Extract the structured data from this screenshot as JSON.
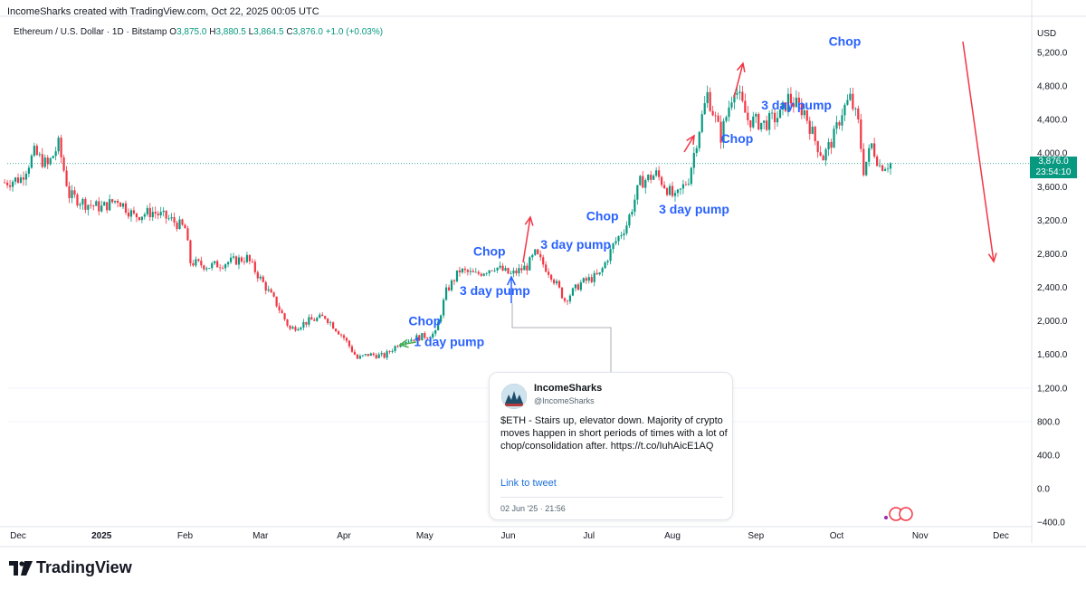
{
  "header": {
    "text": "IncomeSharks created with TradingView.com, Oct 22, 2025 00:05 UTC"
  },
  "legend": {
    "symbol": "Ethereum / U.S. Dollar · 1D · Bitstamp",
    "o_key": "O",
    "o_val": "3,875.0",
    "h_key": "H",
    "h_val": "3,880.5",
    "l_key": "L",
    "l_val": "3,864.5",
    "c_key": "C",
    "c_val": "3,876.0",
    "change": "+1.0 (+0.03%)"
  },
  "price_tag": {
    "price": "3,876.0",
    "countdown": "23:54:10"
  },
  "tweet": {
    "name": "IncomeSharks",
    "handle": "@IncomeSharks",
    "text": "$ETH - Stairs up, elevator down. Majority of crypto moves happen in short periods of times with a lot of chop/consolidation after. https://t.co/IuhAicE1AQ",
    "link": "Link to tweet",
    "date": "02 Jun '25 · 21:56"
  },
  "brand": {
    "name": "TradingView"
  },
  "colors": {
    "up": "#089981",
    "down": "#f23645",
    "annotation": "#2962ff",
    "arrow": "#f23645",
    "green_arrow": "#4caf50",
    "blue_arrow": "#2962ff"
  },
  "chart_data": {
    "type": "candlestick",
    "title": "Ethereum / U.S. Dollar · 1D · Bitstamp",
    "currency_label": "USD",
    "y_ticks": [
      5200,
      4800,
      4400,
      4000,
      3600,
      3200,
      2800,
      2400,
      2000,
      1600,
      1200,
      800,
      400,
      0,
      -400
    ],
    "y_tick_labels": [
      "5,200.0",
      "4,800.0",
      "4,400.0",
      "4,000.0",
      "3,600.0",
      "3,200.0",
      "2,800.0",
      "2,400.0",
      "2,000.0",
      "1,600.0",
      "1,200.0",
      "800.0",
      "400.0",
      "0.0",
      "−400.0"
    ],
    "ylim": [
      -400,
      5600
    ],
    "x_ticks": [
      {
        "label": "Dec",
        "date": "2024-12-01"
      },
      {
        "label": "2025",
        "date": "2025-01-01"
      },
      {
        "label": "Feb",
        "date": "2025-02-01"
      },
      {
        "label": "Mar",
        "date": "2025-03-01"
      },
      {
        "label": "Apr",
        "date": "2025-04-01"
      },
      {
        "label": "May",
        "date": "2025-05-01"
      },
      {
        "label": "Jun",
        "date": "2025-06-01"
      },
      {
        "label": "Jul",
        "date": "2025-07-01"
      },
      {
        "label": "Aug",
        "date": "2025-08-01"
      },
      {
        "label": "Sep",
        "date": "2025-09-01"
      },
      {
        "label": "Oct",
        "date": "2025-10-01"
      },
      {
        "label": "Nov",
        "date": "2025-11-01"
      },
      {
        "label": "Dec",
        "date": "2025-12-01"
      }
    ],
    "series": [
      {
        "date": "2024-11-26",
        "close": 3650
      },
      {
        "date": "2024-12-02",
        "close": 3700
      },
      {
        "date": "2024-12-07",
        "close": 4000
      },
      {
        "date": "2024-12-12",
        "close": 3850
      },
      {
        "date": "2024-12-16",
        "close": 4100
      },
      {
        "date": "2024-12-20",
        "close": 3500
      },
      {
        "date": "2024-12-26",
        "close": 3400
      },
      {
        "date": "2025-01-01",
        "close": 3350
      },
      {
        "date": "2025-01-07",
        "close": 3450
      },
      {
        "date": "2025-01-13",
        "close": 3250
      },
      {
        "date": "2025-01-20",
        "close": 3300
      },
      {
        "date": "2025-01-27",
        "close": 3200
      },
      {
        "date": "2025-02-01",
        "close": 3100
      },
      {
        "date": "2025-02-03",
        "close": 2700
      },
      {
        "date": "2025-02-10",
        "close": 2650
      },
      {
        "date": "2025-02-17",
        "close": 2700
      },
      {
        "date": "2025-02-24",
        "close": 2750
      },
      {
        "date": "2025-03-01",
        "close": 2500
      },
      {
        "date": "2025-03-07",
        "close": 2200
      },
      {
        "date": "2025-03-12",
        "close": 1900
      },
      {
        "date": "2025-03-19",
        "close": 2000
      },
      {
        "date": "2025-03-25",
        "close": 2050
      },
      {
        "date": "2025-04-01",
        "close": 1800
      },
      {
        "date": "2025-04-06",
        "close": 1550
      },
      {
        "date": "2025-04-10",
        "close": 1600
      },
      {
        "date": "2025-04-16",
        "close": 1580
      },
      {
        "date": "2025-04-22",
        "close": 1750
      },
      {
        "date": "2025-04-28",
        "close": 1800
      },
      {
        "date": "2025-05-05",
        "close": 1850
      },
      {
        "date": "2025-05-09",
        "close": 2350
      },
      {
        "date": "2025-05-14",
        "close": 2600
      },
      {
        "date": "2025-05-20",
        "close": 2550
      },
      {
        "date": "2025-05-27",
        "close": 2650
      },
      {
        "date": "2025-06-02",
        "close": 2550
      },
      {
        "date": "2025-06-08",
        "close": 2650
      },
      {
        "date": "2025-06-11",
        "close": 2800
      },
      {
        "date": "2025-06-17",
        "close": 2550
      },
      {
        "date": "2025-06-22",
        "close": 2250
      },
      {
        "date": "2025-06-28",
        "close": 2450
      },
      {
        "date": "2025-07-05",
        "close": 2550
      },
      {
        "date": "2025-07-10",
        "close": 2900
      },
      {
        "date": "2025-07-15",
        "close": 3150
      },
      {
        "date": "2025-07-20",
        "close": 3650
      },
      {
        "date": "2025-07-26",
        "close": 3750
      },
      {
        "date": "2025-08-02",
        "close": 3450
      },
      {
        "date": "2025-08-07",
        "close": 3700
      },
      {
        "date": "2025-08-11",
        "close": 4300
      },
      {
        "date": "2025-08-14",
        "close": 4700
      },
      {
        "date": "2025-08-19",
        "close": 4200
      },
      {
        "date": "2025-08-24",
        "close": 4800
      },
      {
        "date": "2025-08-29",
        "close": 4400
      },
      {
        "date": "2025-09-04",
        "close": 4350
      },
      {
        "date": "2025-09-10",
        "close": 4450
      },
      {
        "date": "2025-09-13",
        "close": 4650
      },
      {
        "date": "2025-09-19",
        "close": 4500
      },
      {
        "date": "2025-09-23",
        "close": 4150
      },
      {
        "date": "2025-09-26",
        "close": 3950
      },
      {
        "date": "2025-09-30",
        "close": 4200
      },
      {
        "date": "2025-10-03",
        "close": 4500
      },
      {
        "date": "2025-10-06",
        "close": 4650
      },
      {
        "date": "2025-10-09",
        "close": 4350
      },
      {
        "date": "2025-10-11",
        "close": 3800
      },
      {
        "date": "2025-10-14",
        "close": 4100
      },
      {
        "date": "2025-10-17",
        "close": 3850
      },
      {
        "date": "2025-10-21",
        "close": 3876
      }
    ],
    "current_price": 3876,
    "annotations": [
      {
        "text": "Chop",
        "date": "2025-04-25",
        "price": 1950
      },
      {
        "text": "1 day pump",
        "date": "2025-04-27",
        "price": 1700
      },
      {
        "text": "Chop",
        "date": "2025-05-19",
        "price": 2780
      },
      {
        "text": "3 day pump",
        "date": "2025-05-14",
        "price": 2310
      },
      {
        "text": "3 day pump",
        "date": "2025-06-13",
        "price": 2860
      },
      {
        "text": "Chop",
        "date": "2025-06-30",
        "price": 3200
      },
      {
        "text": "3 day pump",
        "date": "2025-07-27",
        "price": 3280
      },
      {
        "text": "Chop",
        "date": "2025-08-19",
        "price": 4120
      },
      {
        "text": "3 day pump",
        "date": "2025-09-03",
        "price": 4520
      },
      {
        "text": "Chop",
        "date": "2025-09-28",
        "price": 5280
      }
    ]
  }
}
